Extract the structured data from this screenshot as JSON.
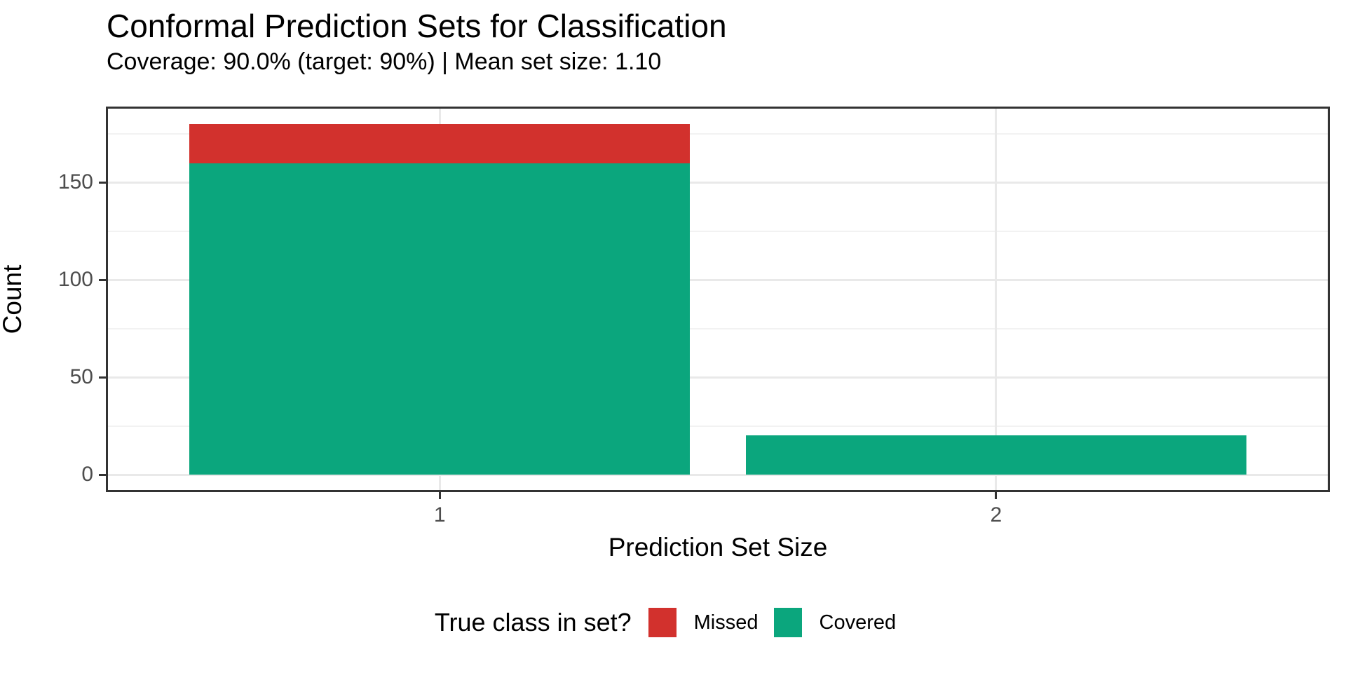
{
  "title": "Conformal Prediction Sets for Classification",
  "subtitle": "Coverage: 90.0% (target: 90%) | Mean set size: 1.10",
  "chart_data": {
    "type": "bar",
    "stacked": true,
    "title": "Conformal Prediction Sets for Classification",
    "subtitle": "Coverage: 90.0% (target: 90%) | Mean set size: 1.10",
    "xlabel": "Prediction Set Size",
    "ylabel": "Count",
    "categories": [
      "1",
      "2"
    ],
    "x_positions": [
      1,
      2
    ],
    "series": [
      {
        "name": "Covered",
        "color": "#0ba67d",
        "values": [
          160,
          20
        ]
      },
      {
        "name": "Missed",
        "color": "#d2312d",
        "values": [
          20,
          0
        ]
      }
    ],
    "totals": [
      180,
      20
    ],
    "bar_width": 0.9,
    "xlim": [
      0.4,
      2.6
    ],
    "ylim": [
      -9,
      189
    ],
    "yticks": [
      "0",
      "50",
      "100",
      "150"
    ],
    "ytick_values": [
      0,
      50,
      100,
      150
    ],
    "yminor_values": [
      25,
      75,
      125,
      175
    ],
    "grid": "major+minor horizontal, major vertical at categories",
    "legend_position": "bottom"
  },
  "legend": {
    "title": "True class in set?",
    "items": [
      {
        "label": "Missed",
        "color": "#d2312d"
      },
      {
        "label": "Covered",
        "color": "#0ba67d"
      }
    ]
  },
  "colors": {
    "covered": "#0ba67d",
    "missed": "#d2312d",
    "panel_border": "#333333",
    "grid_major": "#e9e9e9",
    "grid_minor": "#f2f2f2",
    "tick_label": "#4d4d4d",
    "background": "#ffffff"
  }
}
